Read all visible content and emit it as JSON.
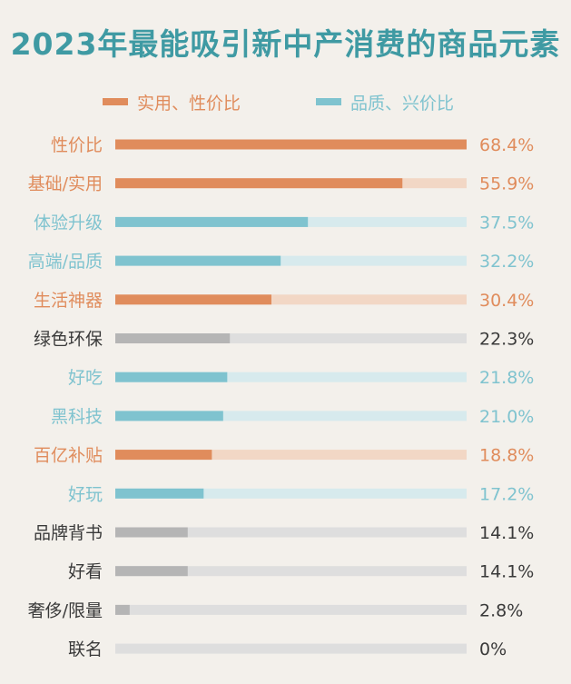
{
  "title": "2023年最能吸引新中产消费的商品元素",
  "colors": {
    "orange": "#e08c5c",
    "orange_light": "#f2d7c5",
    "teal": "#7fc3cf",
    "teal_light": "#d7eaed",
    "gray": "#b5b5b5",
    "gray_light": "#dedede",
    "label_dark": "#3a3a3a",
    "title": "#3f9aa3"
  },
  "legend": [
    {
      "label": "实用、性价比",
      "color": "orange"
    },
    {
      "label": "品质、兴价比",
      "color": "teal"
    }
  ],
  "chart_data": {
    "type": "bar",
    "orientation": "horizontal",
    "title": "2023年最能吸引新中产消费的商品元素",
    "xlim": [
      0,
      68.4
    ],
    "unit": "%",
    "legend_position": "top",
    "grid": false,
    "categories": [
      "性价比",
      "基础/实用",
      "体验升级",
      "高端/品质",
      "生活神器",
      "绿色环保",
      "好吃",
      "黑科技",
      "百亿补贴",
      "好玩",
      "品牌背书",
      "好看",
      "奢侈/限量",
      "联名"
    ],
    "values": [
      68.4,
      55.9,
      37.5,
      32.2,
      30.4,
      22.3,
      21.8,
      21.0,
      18.8,
      17.2,
      14.1,
      14.1,
      2.8,
      0
    ],
    "value_labels": [
      "68.4%",
      "55.9%",
      "37.5%",
      "32.2%",
      "30.4%",
      "22.3%",
      "21.8%",
      "21.0%",
      "18.8%",
      "17.2%",
      "14.1%",
      "14.1%",
      "2.8%",
      "0%"
    ],
    "groups": [
      "orange",
      "orange",
      "teal",
      "teal",
      "orange",
      "gray",
      "teal",
      "teal",
      "orange",
      "teal",
      "gray",
      "gray",
      "gray",
      "gray"
    ]
  }
}
